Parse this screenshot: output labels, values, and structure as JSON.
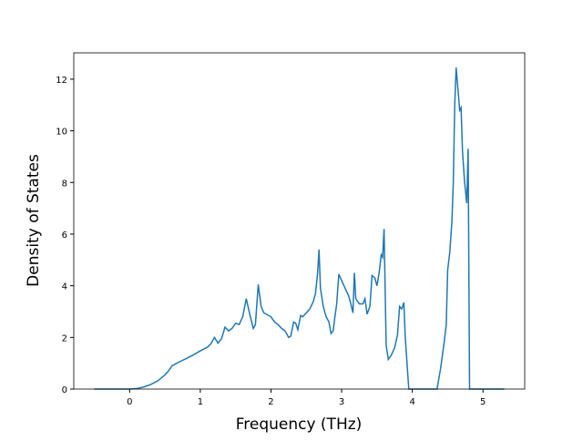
{
  "chart_data": {
    "type": "line",
    "xlabel": "Frequency (THz)",
    "ylabel": "Density of States",
    "x": [
      -0.5,
      0,
      0.1,
      0.2,
      0.3,
      0.4,
      0.5,
      0.55,
      0.6,
      0.7,
      0.8,
      0.9,
      1.0,
      1.1,
      1.15,
      1.2,
      1.25,
      1.3,
      1.35,
      1.4,
      1.45,
      1.5,
      1.55,
      1.6,
      1.65,
      1.7,
      1.75,
      1.78,
      1.82,
      1.86,
      1.9,
      2.0,
      2.05,
      2.1,
      2.15,
      2.2,
      2.25,
      2.28,
      2.32,
      2.35,
      2.38,
      2.42,
      2.45,
      2.5,
      2.55,
      2.6,
      2.63,
      2.66,
      2.68,
      2.7,
      2.74,
      2.78,
      2.82,
      2.85,
      2.88,
      2.9,
      2.93,
      2.96,
      3.0,
      3.05,
      3.1,
      3.13,
      3.16,
      3.18,
      3.2,
      3.25,
      3.3,
      3.33,
      3.36,
      3.4,
      3.43,
      3.47,
      3.5,
      3.53,
      3.56,
      3.58,
      3.6,
      3.63,
      3.66,
      3.7,
      3.75,
      3.79,
      3.82,
      3.85,
      3.88,
      3.9,
      3.95,
      4.0,
      4.2,
      4.35,
      4.4,
      4.45,
      4.48,
      4.5,
      4.53,
      4.56,
      4.58,
      4.6,
      4.62,
      4.64,
      4.67,
      4.69,
      4.71,
      4.74,
      4.77,
      4.79,
      4.81,
      5.0,
      5.3
    ],
    "series": [
      {
        "color": "#1f77b4",
        "values": [
          0,
          0,
          0.02,
          0.08,
          0.18,
          0.32,
          0.55,
          0.7,
          0.9,
          1.05,
          1.18,
          1.32,
          1.48,
          1.62,
          1.75,
          2.0,
          1.78,
          1.95,
          2.4,
          2.25,
          2.35,
          2.55,
          2.5,
          2.8,
          3.5,
          2.9,
          2.35,
          2.5,
          4.05,
          3.2,
          2.95,
          2.8,
          2.6,
          2.5,
          2.35,
          2.25,
          2.0,
          2.05,
          2.6,
          2.55,
          2.3,
          2.85,
          2.8,
          2.95,
          3.1,
          3.4,
          3.7,
          4.5,
          5.4,
          3.9,
          3.2,
          2.8,
          2.6,
          2.15,
          2.25,
          2.7,
          3.3,
          4.45,
          4.2,
          3.9,
          3.6,
          3.3,
          2.95,
          4.5,
          3.5,
          3.3,
          3.3,
          3.5,
          2.9,
          3.2,
          4.4,
          4.3,
          4.0,
          4.5,
          5.2,
          5.1,
          6.2,
          1.7,
          1.15,
          1.3,
          1.6,
          2.1,
          3.2,
          3.1,
          3.35,
          2.0,
          0,
          0,
          0,
          0,
          0.8,
          1.8,
          2.5,
          4.6,
          5.3,
          6.5,
          8.0,
          11.0,
          12.45,
          11.8,
          10.8,
          10.9,
          9.2,
          8.0,
          7.2,
          9.3,
          0,
          0,
          0
        ]
      }
    ],
    "xlim": [
      -0.79,
      5.59
    ],
    "ylim": [
      0,
      13.02
    ],
    "xticks": [
      0,
      1,
      2,
      3,
      4,
      5
    ],
    "yticks": [
      0,
      2,
      4,
      6,
      8,
      10,
      12
    ]
  }
}
